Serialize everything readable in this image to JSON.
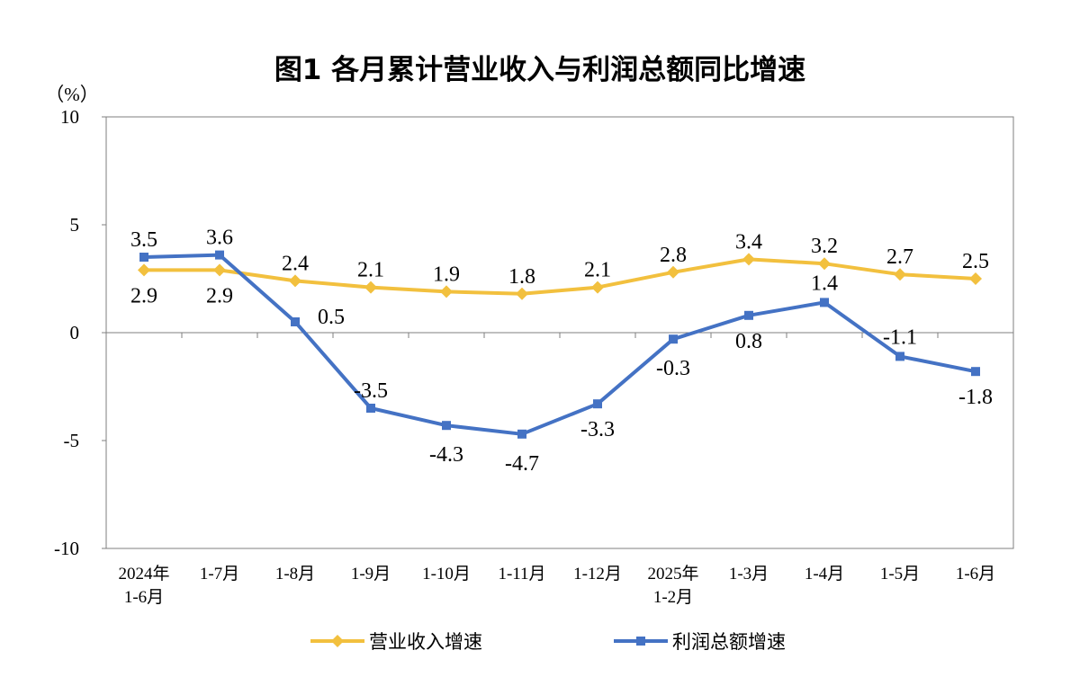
{
  "chart_data": {
    "type": "line",
    "title": "图1  各月累计营业收入与利润总额同比增速",
    "unit_label": "（%）",
    "ylim": [
      -10,
      10
    ],
    "yticks": [
      "10",
      "5",
      "0",
      "-5",
      "-10"
    ],
    "categories": [
      [
        "2024年",
        "1-6月"
      ],
      [
        "1-7月"
      ],
      [
        "1-8月"
      ],
      [
        "1-9月"
      ],
      [
        "1-10月"
      ],
      [
        "1-11月"
      ],
      [
        "1-12月"
      ],
      [
        "2025年",
        "1-2月"
      ],
      [
        "1-3月"
      ],
      [
        "1-4月"
      ],
      [
        "1-5月"
      ],
      [
        "1-6月"
      ]
    ],
    "series": [
      {
        "name": "营业收入增速",
        "color": "#F2C03E",
        "marker": "diamond",
        "values": [
          2.9,
          2.9,
          2.4,
          2.1,
          1.9,
          1.8,
          2.1,
          2.8,
          3.4,
          3.2,
          2.7,
          2.5
        ],
        "labels": [
          "2.9",
          "2.9",
          "2.4",
          "2.1",
          "1.9",
          "1.8",
          "2.1",
          "2.8",
          "3.4",
          "3.2",
          "2.7",
          "2.5"
        ]
      },
      {
        "name": "利润总额增速",
        "color": "#4472C4",
        "marker": "square",
        "values": [
          3.5,
          3.6,
          0.5,
          -3.5,
          -4.3,
          -4.7,
          -3.3,
          -0.3,
          0.8,
          1.4,
          -1.1,
          -1.8
        ],
        "labels": [
          "3.5",
          "3.6",
          "0.5",
          "-3.5",
          "-4.3",
          "-4.7",
          "-3.3",
          "-0.3",
          "0.8",
          "1.4",
          "-1.1",
          "-1.8"
        ]
      }
    ],
    "grid": false,
    "legend": "bottom-center"
  }
}
